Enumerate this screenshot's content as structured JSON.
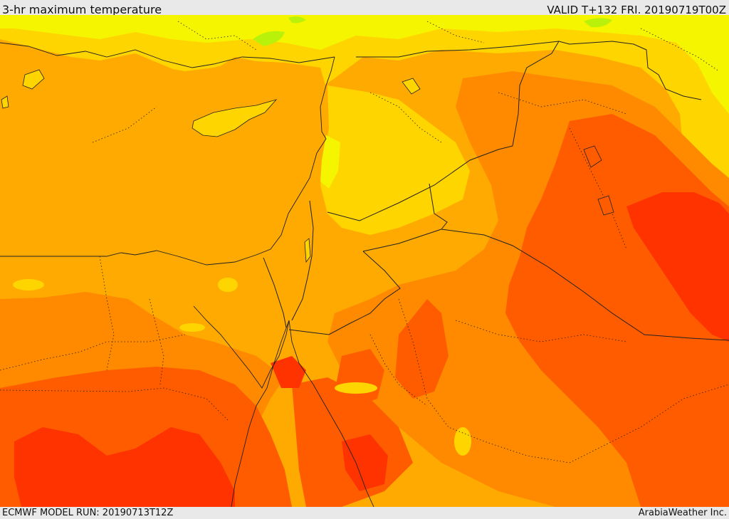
{
  "header": {
    "title": "3-hr maximum temperature",
    "valid": "VALID T+132 FRI. 20190719T00Z"
  },
  "footer": {
    "model_run": "ECMWF MODEL RUN: 20190713T12Z",
    "credit": "ArabiaWeather Inc."
  },
  "map": {
    "palette": {
      "green": "#b9f10a",
      "light_yellow": "#f5f500",
      "yellow": "#ffd500",
      "orange": "#ffaa00",
      "deep_orange": "#ff8a00",
      "red_orange": "#ff5c00",
      "red": "#ff3300",
      "border": "#222222"
    }
  }
}
